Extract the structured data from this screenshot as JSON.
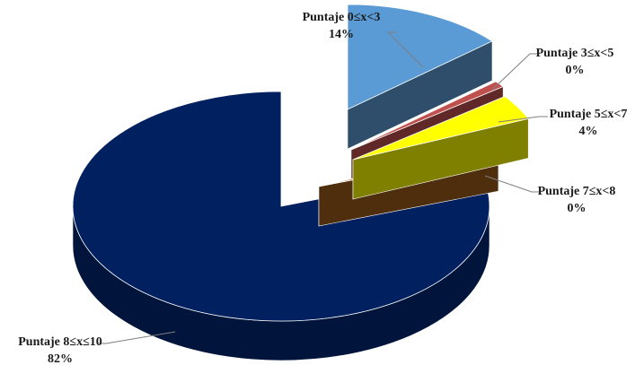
{
  "chart_data": {
    "type": "pie",
    "style": "3d-exploded",
    "legend": "none",
    "grid": false,
    "title": "",
    "categories": [
      "Puntaje 0≤x<3",
      "Puntaje 3≤x<5",
      "Puntaje 5≤x<7",
      "Puntaje 7≤x<8",
      "Puntaje 8≤x≤10"
    ],
    "values": [
      14,
      0,
      4,
      0,
      82
    ],
    "value_labels": [
      "14%",
      "0%",
      "4%",
      "0%",
      "82%"
    ],
    "colors": [
      "#5b9bd5",
      "#c0504d",
      "#ffff00",
      "#9c5b1a",
      "#002060"
    ]
  }
}
